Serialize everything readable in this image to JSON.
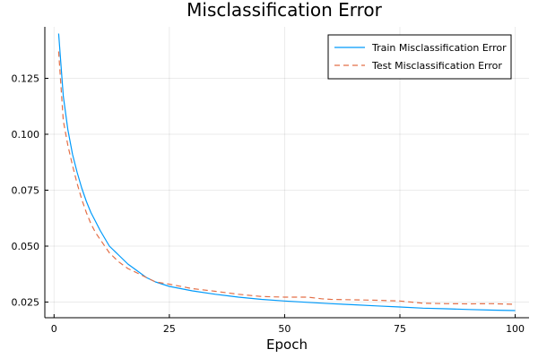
{
  "chart_data": {
    "type": "line",
    "title": "Misclassification Error",
    "xlabel": "Epoch",
    "ylabel": "",
    "xlim": [
      -2,
      103
    ],
    "ylim": [
      0.018,
      0.148
    ],
    "xticks": [
      0,
      25,
      50,
      75,
      100
    ],
    "yticks": [
      0.025,
      0.05,
      0.075,
      0.1,
      0.125
    ],
    "xtick_labels": [
      "0",
      "25",
      "50",
      "75",
      "100"
    ],
    "ytick_labels": [
      "0.025",
      "0.050",
      "0.075",
      "0.100",
      "0.125"
    ],
    "grid": true,
    "legend_position": "top-right",
    "series": [
      {
        "name": "Train Misclassification Error",
        "color": "#009AFA",
        "dash": "solid",
        "x": [
          1,
          2,
          3,
          4,
          5,
          6,
          7,
          8,
          9,
          10,
          12,
          14,
          16,
          18,
          20,
          22,
          25,
          30,
          35,
          40,
          45,
          50,
          55,
          60,
          65,
          70,
          75,
          80,
          85,
          90,
          95,
          100
        ],
        "y": [
          0.145,
          0.117,
          0.102,
          0.091,
          0.083,
          0.076,
          0.07,
          0.065,
          0.061,
          0.057,
          0.05,
          0.046,
          0.042,
          0.039,
          0.036,
          0.034,
          0.032,
          0.03,
          0.0285,
          0.0272,
          0.0262,
          0.0255,
          0.0249,
          0.0243,
          0.0238,
          0.0233,
          0.0228,
          0.0223,
          0.022,
          0.0217,
          0.0214,
          0.0212
        ]
      },
      {
        "name": "Test Misclassification Error",
        "color": "#E36F47",
        "dash": "dashed",
        "x": [
          1,
          2,
          3,
          4,
          5,
          6,
          7,
          8,
          9,
          10,
          12,
          14,
          16,
          18,
          20,
          22,
          25,
          30,
          35,
          40,
          45,
          50,
          55,
          58,
          60,
          65,
          70,
          75,
          80,
          85,
          90,
          95,
          100
        ],
        "y": [
          0.137,
          0.106,
          0.095,
          0.086,
          0.078,
          0.071,
          0.065,
          0.06,
          0.056,
          0.053,
          0.047,
          0.043,
          0.04,
          0.038,
          0.036,
          0.034,
          0.033,
          0.031,
          0.0298,
          0.0285,
          0.0275,
          0.0272,
          0.0272,
          0.0265,
          0.0262,
          0.026,
          0.0258,
          0.0255,
          0.0245,
          0.0243,
          0.0242,
          0.0243,
          0.024
        ]
      }
    ]
  }
}
